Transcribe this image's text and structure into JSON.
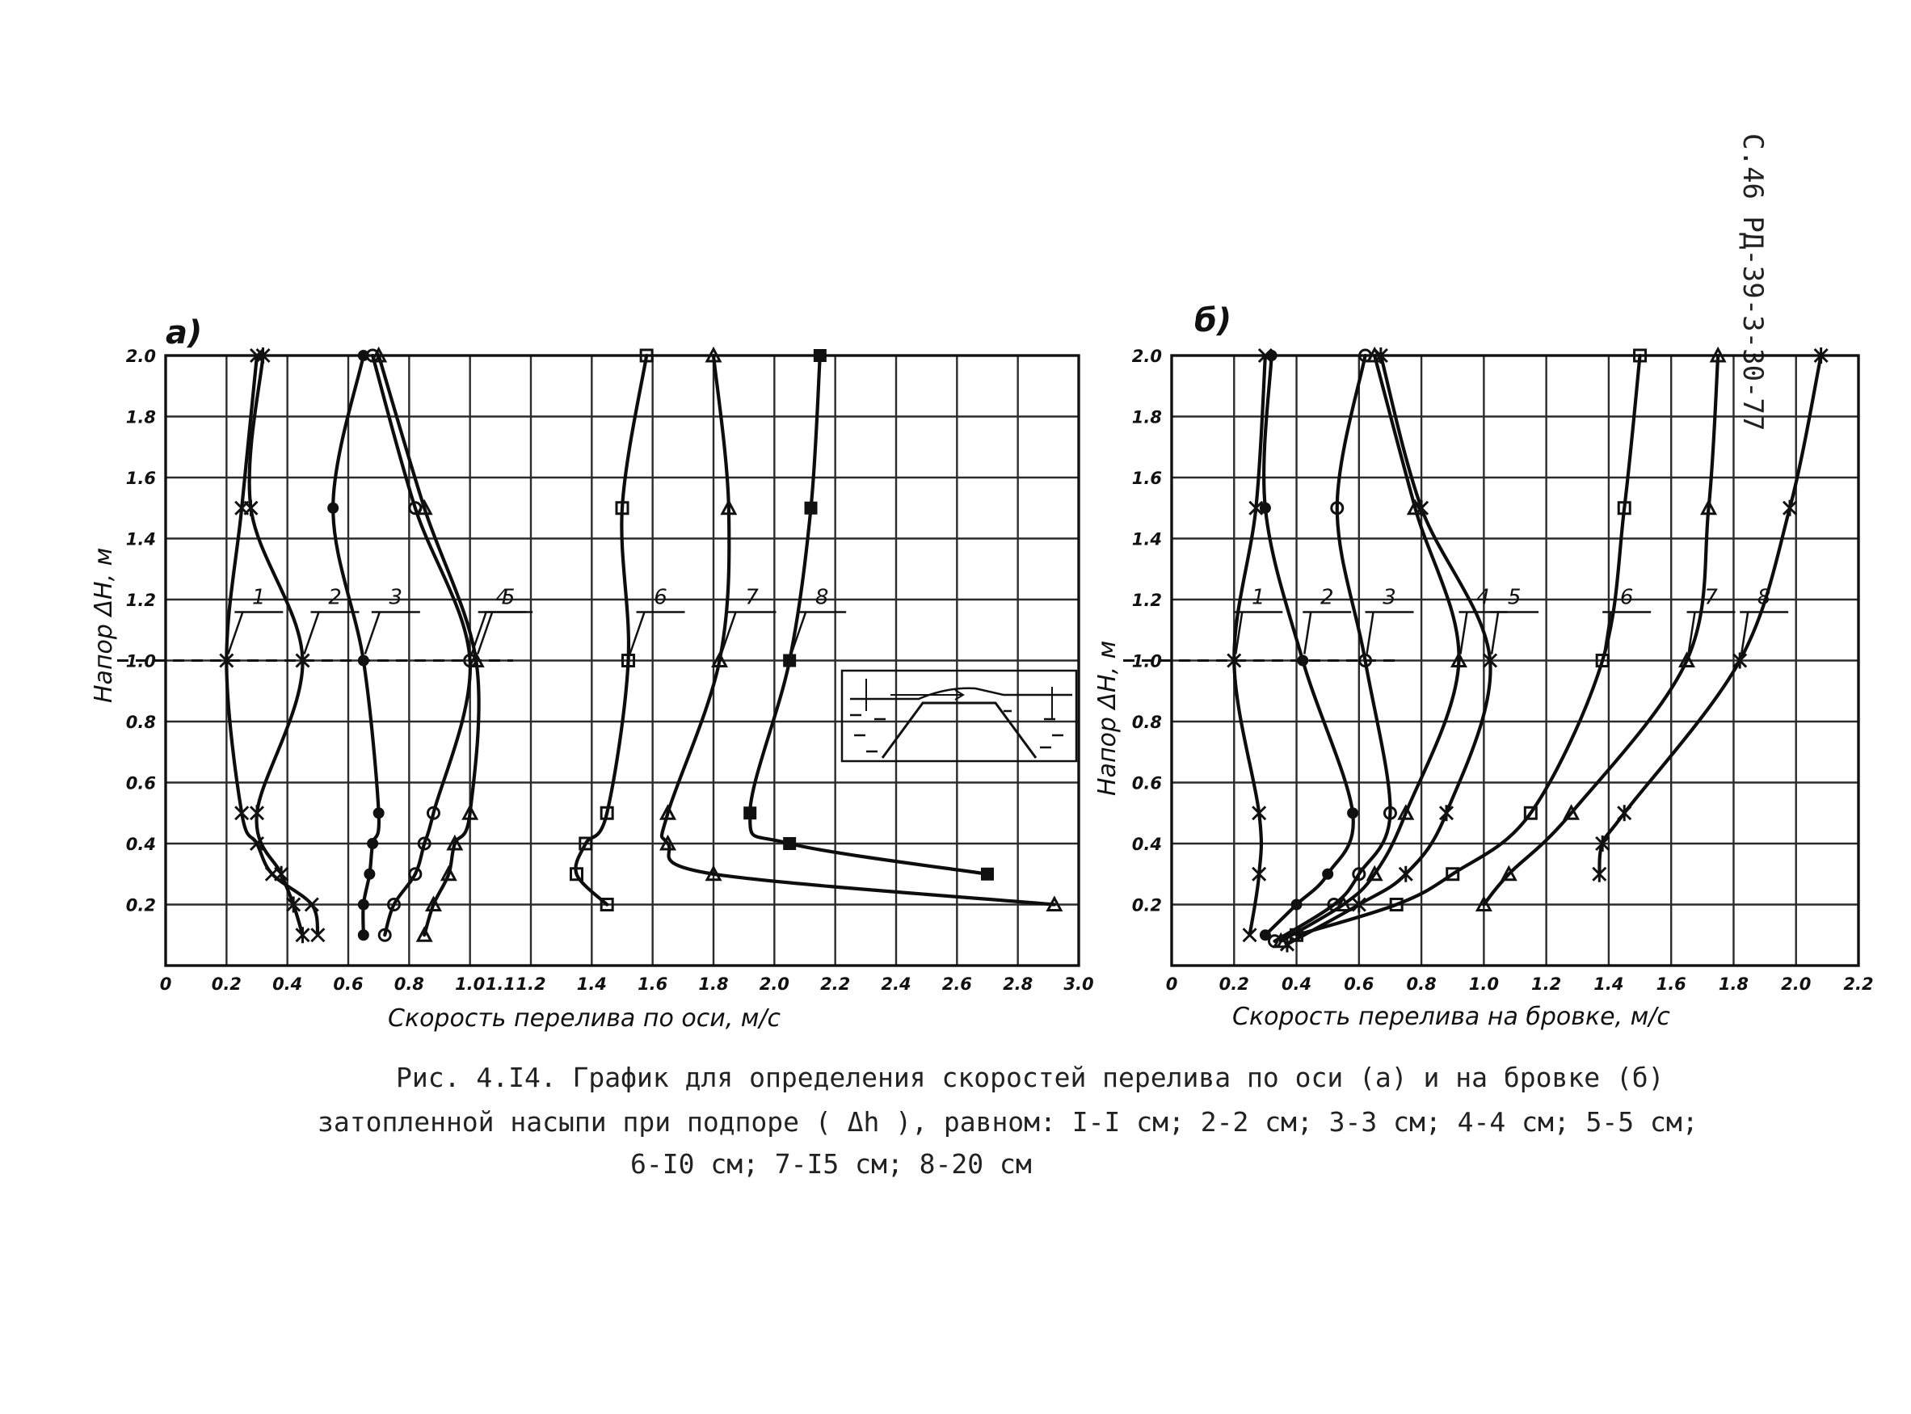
{
  "doc_number": "С.46 РД-39-3-30-77",
  "caption": {
    "line1": "Рис. 4.I4. График для определения скоростей перелива по оси (а) и на бровке (б)",
    "line2": "затопленной насыпи при подпоре ( Δh ), равном: I-I см; 2-2 см; 3-3 см; 4-4 см; 5-5 см;",
    "line3": "6-I0 см; 7-I5 см; 8-20 см"
  },
  "chart_data": [
    {
      "type": "line",
      "panel_label": "а)",
      "xlabel": "Скорость перелива по оси, м/с",
      "ylabel": "Напор ΔH, м",
      "xlim": [
        0,
        3.0
      ],
      "ylim": [
        0,
        2.0
      ],
      "x_ticks": [
        "0",
        "0.2",
        "0.4",
        "0.6",
        "0.8",
        "1.0",
        "1.1",
        "1.2",
        "1.4",
        "1.6",
        "1.8",
        "2.0",
        "2.2",
        "2.4",
        "2.6",
        "2.8",
        "3.0"
      ],
      "y_ticks": [
        "0.2",
        "0.4",
        "0.6",
        "0.8",
        "1.0",
        "1.2",
        "1.4",
        "1.6",
        "1.8",
        "2.0"
      ],
      "grid": true,
      "reference_line_y": 1.0,
      "series": [
        {
          "name": "1",
          "marker": "x",
          "points": [
            [
              0.5,
              0.1
            ],
            [
              0.48,
              0.2
            ],
            [
              0.35,
              0.3
            ],
            [
              0.3,
              0.4
            ],
            [
              0.25,
              0.5
            ],
            [
              0.2,
              1.0
            ],
            [
              0.25,
              1.5
            ],
            [
              0.3,
              2.0
            ]
          ]
        },
        {
          "name": "2",
          "marker": "star",
          "points": [
            [
              0.45,
              0.1
            ],
            [
              0.42,
              0.2
            ],
            [
              0.38,
              0.3
            ],
            [
              0.3,
              0.5
            ],
            [
              0.45,
              1.0
            ],
            [
              0.28,
              1.5
            ],
            [
              0.32,
              2.0
            ]
          ]
        },
        {
          "name": "3",
          "marker": "dot",
          "points": [
            [
              0.65,
              0.1
            ],
            [
              0.65,
              0.2
            ],
            [
              0.67,
              0.3
            ],
            [
              0.68,
              0.4
            ],
            [
              0.7,
              0.5
            ],
            [
              0.65,
              1.0
            ],
            [
              0.55,
              1.5
            ],
            [
              0.65,
              2.0
            ]
          ]
        },
        {
          "name": "4",
          "marker": "circle",
          "points": [
            [
              0.72,
              0.1
            ],
            [
              0.75,
              0.2
            ],
            [
              0.82,
              0.3
            ],
            [
              0.85,
              0.4
            ],
            [
              0.88,
              0.5
            ],
            [
              1.0,
              1.0
            ],
            [
              0.82,
              1.5
            ],
            [
              0.68,
              2.0
            ]
          ]
        },
        {
          "name": "5",
          "marker": "triangle",
          "points": [
            [
              0.85,
              0.1
            ],
            [
              0.88,
              0.2
            ],
            [
              0.93,
              0.3
            ],
            [
              0.95,
              0.4
            ],
            [
              1.0,
              0.5
            ],
            [
              1.02,
              1.0
            ],
            [
              0.85,
              1.5
            ],
            [
              0.7,
              2.0
            ]
          ]
        },
        {
          "name": "6",
          "marker": "square",
          "points": [
            [
              1.45,
              0.2
            ],
            [
              1.35,
              0.3
            ],
            [
              1.38,
              0.4
            ],
            [
              1.45,
              0.5
            ],
            [
              1.52,
              1.0
            ],
            [
              1.5,
              1.5
            ],
            [
              1.58,
              2.0
            ]
          ]
        },
        {
          "name": "7",
          "marker": "triangle",
          "points": [
            [
              2.92,
              0.2
            ],
            [
              1.8,
              0.3
            ],
            [
              1.65,
              0.4
            ],
            [
              1.65,
              0.5
            ],
            [
              1.82,
              1.0
            ],
            [
              1.85,
              1.5
            ],
            [
              1.8,
              2.0
            ]
          ]
        },
        {
          "name": "8",
          "marker": "filled-square",
          "points": [
            [
              2.7,
              0.3
            ],
            [
              2.05,
              0.4
            ],
            [
              1.92,
              0.5
            ],
            [
              2.05,
              1.0
            ],
            [
              2.12,
              1.5
            ],
            [
              2.15,
              2.0
            ]
          ]
        }
      ]
    },
    {
      "type": "line",
      "panel_label": "б)",
      "xlabel": "Скорость перелива на бровке, м/с",
      "ylabel": "Напор ΔH, м",
      "xlim": [
        0,
        2.2
      ],
      "ylim": [
        0,
        2.0
      ],
      "x_ticks": [
        "0",
        "0.2",
        "0.4",
        "0.6",
        "0.8",
        "1.0",
        "1.2",
        "1.4",
        "1.6",
        "1.8",
        "2.0",
        "2.2"
      ],
      "y_ticks": [
        "0.2",
        "0.4",
        "0.6",
        "0.8",
        "1.0",
        "1.2",
        "1.4",
        "1.6",
        "1.8",
        "2.0"
      ],
      "grid": true,
      "reference_line_y": 1.0,
      "series": [
        {
          "name": "1",
          "marker": "x",
          "points": [
            [
              0.25,
              0.1
            ],
            [
              0.28,
              0.3
            ],
            [
              0.28,
              0.5
            ],
            [
              0.2,
              1.0
            ],
            [
              0.27,
              1.5
            ],
            [
              0.3,
              2.0
            ]
          ]
        },
        {
          "name": "2",
          "marker": "dot",
          "points": [
            [
              0.3,
              0.1
            ],
            [
              0.4,
              0.2
            ],
            [
              0.5,
              0.3
            ],
            [
              0.58,
              0.5
            ],
            [
              0.42,
              1.0
            ],
            [
              0.3,
              1.5
            ],
            [
              0.32,
              2.0
            ]
          ]
        },
        {
          "name": "3",
          "marker": "circle",
          "points": [
            [
              0.33,
              0.08
            ],
            [
              0.52,
              0.2
            ],
            [
              0.6,
              0.3
            ],
            [
              0.7,
              0.5
            ],
            [
              0.62,
              1.0
            ],
            [
              0.53,
              1.5
            ],
            [
              0.62,
              2.0
            ]
          ]
        },
        {
          "name": "4",
          "marker": "triangle",
          "points": [
            [
              0.35,
              0.08
            ],
            [
              0.55,
              0.2
            ],
            [
              0.65,
              0.3
            ],
            [
              0.75,
              0.5
            ],
            [
              0.92,
              1.0
            ],
            [
              0.78,
              1.5
            ],
            [
              0.65,
              2.0
            ]
          ]
        },
        {
          "name": "5",
          "marker": "star",
          "points": [
            [
              0.37,
              0.07
            ],
            [
              0.6,
              0.2
            ],
            [
              0.75,
              0.3
            ],
            [
              0.88,
              0.5
            ],
            [
              1.02,
              1.0
            ],
            [
              0.8,
              1.5
            ],
            [
              0.67,
              2.0
            ]
          ]
        },
        {
          "name": "6",
          "marker": "square",
          "points": [
            [
              0.4,
              0.1
            ],
            [
              0.72,
              0.2
            ],
            [
              0.9,
              0.3
            ],
            [
              1.15,
              0.5
            ],
            [
              1.38,
              1.0
            ],
            [
              1.45,
              1.5
            ],
            [
              1.5,
              2.0
            ]
          ]
        },
        {
          "name": "7",
          "marker": "triangle",
          "points": [
            [
              1.0,
              0.2
            ],
            [
              1.08,
              0.3
            ],
            [
              1.28,
              0.5
            ],
            [
              1.65,
              1.0
            ],
            [
              1.72,
              1.5
            ],
            [
              1.75,
              2.0
            ]
          ]
        },
        {
          "name": "8",
          "marker": "star",
          "points": [
            [
              1.37,
              0.3
            ],
            [
              1.38,
              0.4
            ],
            [
              1.45,
              0.5
            ],
            [
              1.82,
              1.0
            ],
            [
              1.98,
              1.5
            ],
            [
              2.08,
              2.0
            ]
          ]
        }
      ]
    }
  ]
}
